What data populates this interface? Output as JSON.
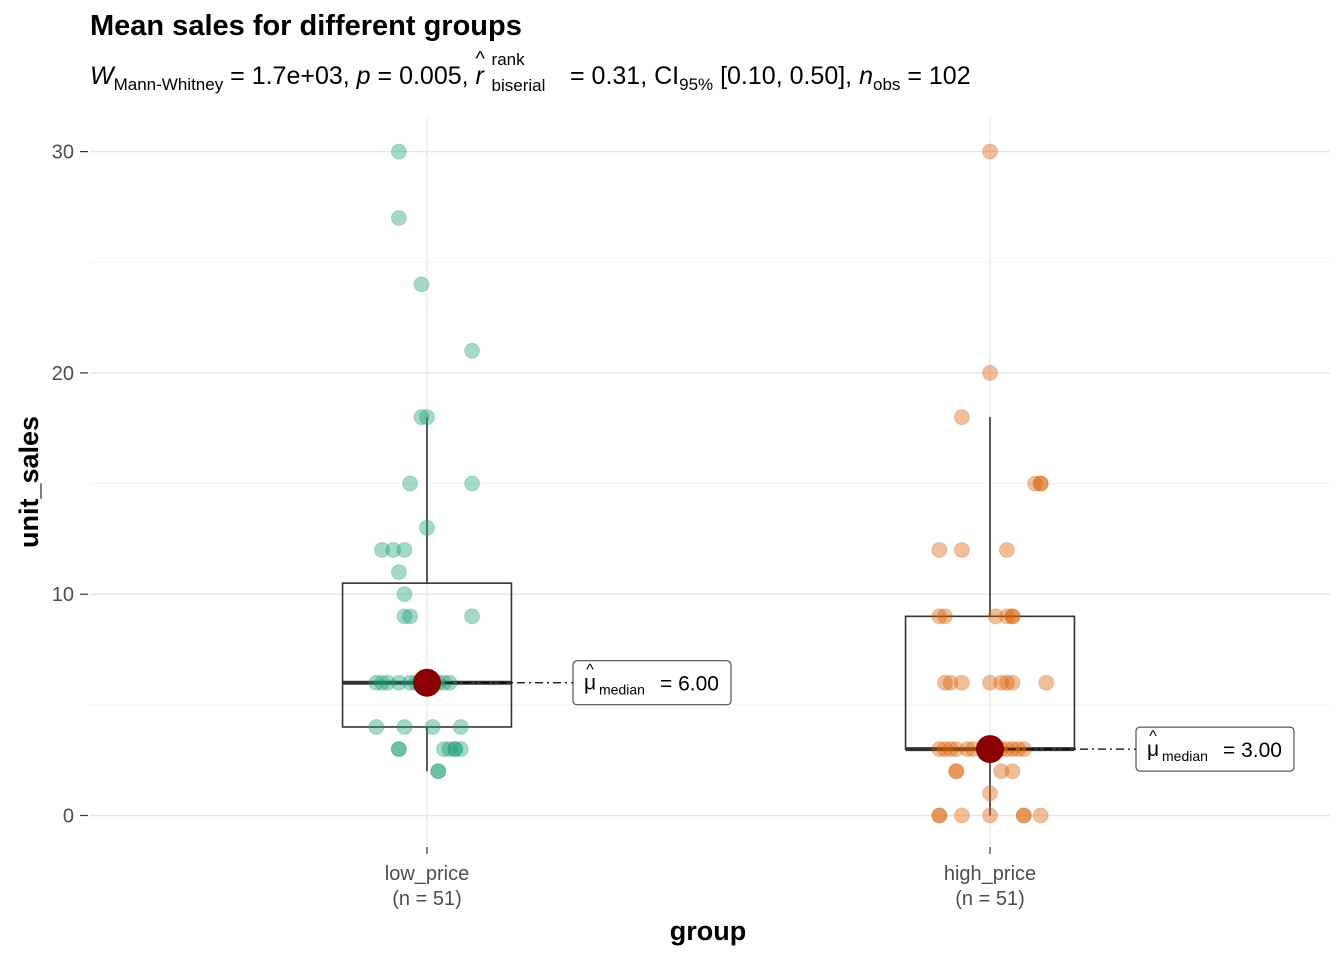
{
  "title": "Mean sales for different groups",
  "subtitle": {
    "w_symbol": "W",
    "w_sub": "Mann-Whitney",
    "w_value": " = 1.7e+03, ",
    "p_symbol": "p",
    "p_value": " = 0.005, ",
    "r_symbol": "r",
    "r_hat": "^",
    "r_sup": "rank",
    "r_sub": "biserial",
    "r_value": " = 0.31, CI",
    "ci_sub": "95%",
    "ci_value": " [0.10, 0.50], ",
    "n_symbol": "n",
    "n_sub": "obs",
    "n_value": " = 102"
  },
  "chart_data": {
    "type": "box-scatter",
    "xlabel": "group",
    "ylabel": "unit_sales",
    "ylim": [
      -1.3,
      31.5
    ],
    "yticks": [
      0,
      10,
      20,
      30
    ],
    "grid": true,
    "categories": [
      {
        "name": "low_price",
        "n_label": "(n = 51)",
        "color": "#1b9e77",
        "box": {
          "q1": 4,
          "median": 6,
          "q3": 10.5,
          "whisker_low": 2,
          "whisker_high": 18
        },
        "median_label": {
          "symbol": "μ",
          "hat": "^",
          "sub": "median",
          "value": "= 6.00"
        },
        "median_value": 6,
        "points": [
          [
            -0.05,
            30
          ],
          [
            -0.05,
            27
          ],
          [
            -0.01,
            24
          ],
          [
            0.08,
            21
          ],
          [
            -0.01,
            18
          ],
          [
            0,
            18
          ],
          [
            -0.03,
            15
          ],
          [
            0.08,
            15
          ],
          [
            0,
            13
          ],
          [
            -0.08,
            12
          ],
          [
            -0.06,
            12
          ],
          [
            -0.04,
            12
          ],
          [
            -0.05,
            11
          ],
          [
            -0.04,
            10
          ],
          [
            -0.04,
            9
          ],
          [
            -0.03,
            9
          ],
          [
            0.08,
            9
          ],
          [
            -0.09,
            6
          ],
          [
            -0.08,
            6
          ],
          [
            -0.07,
            6
          ],
          [
            -0.05,
            6
          ],
          [
            -0.03,
            6
          ],
          [
            -0.02,
            6
          ],
          [
            0,
            6
          ],
          [
            0.01,
            6
          ],
          [
            0.02,
            6
          ],
          [
            0.03,
            6
          ],
          [
            0.04,
            6
          ],
          [
            -0.09,
            4
          ],
          [
            -0.04,
            4
          ],
          [
            0.01,
            4
          ],
          [
            0.06,
            4
          ],
          [
            -0.05,
            3
          ],
          [
            -0.05,
            3
          ],
          [
            0.03,
            3
          ],
          [
            0.04,
            3
          ],
          [
            0.05,
            3
          ],
          [
            0.05,
            3
          ],
          [
            0.06,
            3
          ],
          [
            0.02,
            2
          ],
          [
            0.02,
            2
          ]
        ]
      },
      {
        "name": "high_price",
        "n_label": "(n = 51)",
        "color": "#d95f02",
        "box": {
          "q1": 3,
          "median": 3,
          "q3": 9,
          "whisker_low": 0,
          "whisker_high": 18
        },
        "median_label": {
          "symbol": "μ",
          "hat": "^",
          "sub": "median",
          "value": "= 3.00"
        },
        "median_value": 3,
        "points": [
          [
            0,
            30
          ],
          [
            0,
            20
          ],
          [
            -0.05,
            18
          ],
          [
            0.08,
            15
          ],
          [
            0.09,
            15
          ],
          [
            0.09,
            15
          ],
          [
            -0.09,
            12
          ],
          [
            -0.05,
            12
          ],
          [
            0.03,
            12
          ],
          [
            -0.09,
            9
          ],
          [
            -0.08,
            9
          ],
          [
            0.01,
            9
          ],
          [
            0.03,
            9
          ],
          [
            0.04,
            9
          ],
          [
            0.04,
            9
          ],
          [
            -0.08,
            6
          ],
          [
            -0.07,
            6
          ],
          [
            -0.05,
            6
          ],
          [
            0,
            6
          ],
          [
            0.02,
            6
          ],
          [
            0.03,
            6
          ],
          [
            0.04,
            6
          ],
          [
            0.1,
            6
          ],
          [
            -0.09,
            3
          ],
          [
            -0.08,
            3
          ],
          [
            -0.07,
            3
          ],
          [
            -0.06,
            3
          ],
          [
            -0.04,
            3
          ],
          [
            -0.03,
            3
          ],
          [
            -0.01,
            3
          ],
          [
            0.02,
            3
          ],
          [
            0.03,
            3
          ],
          [
            0.04,
            3
          ],
          [
            0.05,
            3
          ],
          [
            0.06,
            3
          ],
          [
            -0.06,
            2
          ],
          [
            -0.06,
            2
          ],
          [
            0.02,
            2
          ],
          [
            0.04,
            2
          ],
          [
            0,
            1
          ],
          [
            -0.09,
            0
          ],
          [
            -0.09,
            0
          ],
          [
            -0.05,
            0
          ],
          [
            0,
            0
          ],
          [
            0.06,
            0
          ],
          [
            0.06,
            0
          ],
          [
            0.09,
            0
          ]
        ]
      }
    ]
  }
}
